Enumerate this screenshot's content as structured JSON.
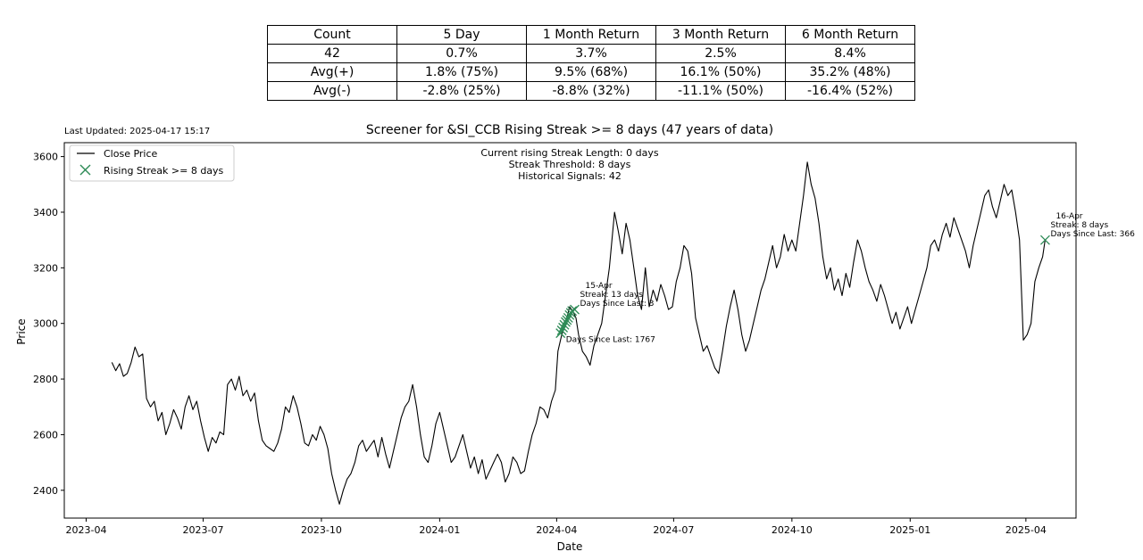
{
  "stats_table": {
    "header": [
      "Count",
      "5 Day",
      "1 Month Return",
      "3 Month Return",
      "6 Month Return"
    ],
    "rows": [
      [
        "42",
        "0.7%",
        "3.7%",
        "2.5%",
        "8.4%"
      ],
      [
        "Avg(+)",
        "1.8% (75%)",
        "9.5% (68%)",
        "16.1% (50%)",
        "35.2% (48%)"
      ],
      [
        "Avg(-)",
        "-2.8% (25%)",
        "-8.8% (32%)",
        "-11.1% (50%)",
        "-16.4% (52%)"
      ]
    ]
  },
  "last_updated": "Last Updated: 2025-04-17 15:17",
  "colors": {
    "line": "#000000",
    "marker": "#2e8b57",
    "axis": "#000000"
  },
  "chart_data": {
    "type": "line",
    "title": "Screener for &SI_CCB Rising Streak >= 8 days (47 years of data)",
    "xlabel": "Date",
    "ylabel": "Price",
    "xlim": [
      "2023-03-15",
      "2025-05-10"
    ],
    "ylim": [
      2300,
      3650
    ],
    "x_ticks": [
      "2023-04",
      "2023-07",
      "2023-10",
      "2024-01",
      "2024-04",
      "2024-07",
      "2024-10",
      "2025-01",
      "2025-04"
    ],
    "y_ticks": [
      2400,
      2600,
      2800,
      3000,
      3200,
      3400,
      3600
    ],
    "grid": false,
    "legend": {
      "position": "top-left",
      "entries": [
        "Close Price",
        "Rising Streak >= 8 days"
      ]
    },
    "info_lines": [
      "Current rising Streak Length: 0 days",
      "Streak Threshold: 8 days",
      "Historical Signals: 42"
    ],
    "series": [
      {
        "name": "Close Price",
        "points": [
          [
            "2023-04-21",
            2860
          ],
          [
            "2023-04-24",
            2830
          ],
          [
            "2023-04-27",
            2855
          ],
          [
            "2023-04-30",
            2810
          ],
          [
            "2023-05-03",
            2820
          ],
          [
            "2023-05-06",
            2860
          ],
          [
            "2023-05-09",
            2915
          ],
          [
            "2023-05-12",
            2880
          ],
          [
            "2023-05-15",
            2890
          ],
          [
            "2023-05-18",
            2730
          ],
          [
            "2023-05-21",
            2700
          ],
          [
            "2023-05-24",
            2720
          ],
          [
            "2023-05-27",
            2650
          ],
          [
            "2023-05-30",
            2680
          ],
          [
            "2023-06-02",
            2600
          ],
          [
            "2023-06-05",
            2640
          ],
          [
            "2023-06-08",
            2690
          ],
          [
            "2023-06-11",
            2660
          ],
          [
            "2023-06-14",
            2620
          ],
          [
            "2023-06-17",
            2700
          ],
          [
            "2023-06-20",
            2740
          ],
          [
            "2023-06-23",
            2690
          ],
          [
            "2023-06-26",
            2720
          ],
          [
            "2023-06-29",
            2650
          ],
          [
            "2023-07-02",
            2590
          ],
          [
            "2023-07-05",
            2540
          ],
          [
            "2023-07-08",
            2590
          ],
          [
            "2023-07-11",
            2570
          ],
          [
            "2023-07-14",
            2610
          ],
          [
            "2023-07-17",
            2600
          ],
          [
            "2023-07-20",
            2780
          ],
          [
            "2023-07-23",
            2800
          ],
          [
            "2023-07-26",
            2760
          ],
          [
            "2023-07-29",
            2810
          ],
          [
            "2023-08-01",
            2740
          ],
          [
            "2023-08-04",
            2760
          ],
          [
            "2023-08-07",
            2720
          ],
          [
            "2023-08-10",
            2750
          ],
          [
            "2023-08-13",
            2650
          ],
          [
            "2023-08-16",
            2580
          ],
          [
            "2023-08-19",
            2560
          ],
          [
            "2023-08-22",
            2550
          ],
          [
            "2023-08-25",
            2540
          ],
          [
            "2023-08-28",
            2570
          ],
          [
            "2023-08-31",
            2620
          ],
          [
            "2023-09-03",
            2700
          ],
          [
            "2023-09-06",
            2680
          ],
          [
            "2023-09-09",
            2740
          ],
          [
            "2023-09-12",
            2700
          ],
          [
            "2023-09-15",
            2640
          ],
          [
            "2023-09-18",
            2570
          ],
          [
            "2023-09-21",
            2560
          ],
          [
            "2023-09-24",
            2600
          ],
          [
            "2023-09-27",
            2580
          ],
          [
            "2023-09-30",
            2630
          ],
          [
            "2023-10-03",
            2600
          ],
          [
            "2023-10-06",
            2550
          ],
          [
            "2023-10-09",
            2460
          ],
          [
            "2023-10-12",
            2400
          ],
          [
            "2023-10-15",
            2350
          ],
          [
            "2023-10-18",
            2400
          ],
          [
            "2023-10-21",
            2440
          ],
          [
            "2023-10-24",
            2460
          ],
          [
            "2023-10-27",
            2500
          ],
          [
            "2023-10-30",
            2560
          ],
          [
            "2023-11-02",
            2580
          ],
          [
            "2023-11-05",
            2540
          ],
          [
            "2023-11-08",
            2560
          ],
          [
            "2023-11-11",
            2580
          ],
          [
            "2023-11-14",
            2520
          ],
          [
            "2023-11-17",
            2590
          ],
          [
            "2023-11-20",
            2530
          ],
          [
            "2023-11-23",
            2480
          ],
          [
            "2023-11-26",
            2540
          ],
          [
            "2023-11-29",
            2600
          ],
          [
            "2023-12-02",
            2660
          ],
          [
            "2023-12-05",
            2700
          ],
          [
            "2023-12-08",
            2720
          ],
          [
            "2023-12-11",
            2780
          ],
          [
            "2023-12-14",
            2700
          ],
          [
            "2023-12-17",
            2600
          ],
          [
            "2023-12-20",
            2520
          ],
          [
            "2023-12-23",
            2500
          ],
          [
            "2023-12-26",
            2560
          ],
          [
            "2023-12-29",
            2640
          ],
          [
            "2024-01-01",
            2680
          ],
          [
            "2024-01-04",
            2620
          ],
          [
            "2024-01-07",
            2560
          ],
          [
            "2024-01-10",
            2500
          ],
          [
            "2024-01-13",
            2520
          ],
          [
            "2024-01-16",
            2560
          ],
          [
            "2024-01-19",
            2600
          ],
          [
            "2024-01-22",
            2540
          ],
          [
            "2024-01-25",
            2480
          ],
          [
            "2024-01-28",
            2520
          ],
          [
            "2024-01-31",
            2460
          ],
          [
            "2024-02-03",
            2510
          ],
          [
            "2024-02-06",
            2440
          ],
          [
            "2024-02-09",
            2470
          ],
          [
            "2024-02-12",
            2500
          ],
          [
            "2024-02-15",
            2530
          ],
          [
            "2024-02-18",
            2500
          ],
          [
            "2024-02-21",
            2430
          ],
          [
            "2024-02-24",
            2460
          ],
          [
            "2024-02-27",
            2520
          ],
          [
            "2024-03-01",
            2500
          ],
          [
            "2024-03-04",
            2460
          ],
          [
            "2024-03-07",
            2470
          ],
          [
            "2024-03-10",
            2540
          ],
          [
            "2024-03-13",
            2600
          ],
          [
            "2024-03-16",
            2640
          ],
          [
            "2024-03-19",
            2700
          ],
          [
            "2024-03-22",
            2690
          ],
          [
            "2024-03-25",
            2660
          ],
          [
            "2024-03-28",
            2720
          ],
          [
            "2024-03-31",
            2760
          ],
          [
            "2024-04-02",
            2900
          ],
          [
            "2024-04-05",
            2960
          ],
          [
            "2024-04-08",
            3000
          ],
          [
            "2024-04-11",
            3060
          ],
          [
            "2024-04-14",
            3040
          ],
          [
            "2024-04-16",
            3020
          ],
          [
            "2024-04-18",
            2960
          ],
          [
            "2024-04-21",
            2900
          ],
          [
            "2024-04-24",
            2880
          ],
          [
            "2024-04-27",
            2850
          ],
          [
            "2024-04-30",
            2920
          ],
          [
            "2024-05-03",
            2960
          ],
          [
            "2024-05-06",
            3000
          ],
          [
            "2024-05-09",
            3100
          ],
          [
            "2024-05-12",
            3200
          ],
          [
            "2024-05-14",
            3300
          ],
          [
            "2024-05-16",
            3400
          ],
          [
            "2024-05-19",
            3330
          ],
          [
            "2024-05-22",
            3250
          ],
          [
            "2024-05-25",
            3360
          ],
          [
            "2024-05-28",
            3300
          ],
          [
            "2024-05-31",
            3200
          ],
          [
            "2024-06-03",
            3100
          ],
          [
            "2024-06-06",
            3050
          ],
          [
            "2024-06-09",
            3200
          ],
          [
            "2024-06-12",
            3060
          ],
          [
            "2024-06-15",
            3120
          ],
          [
            "2024-06-18",
            3080
          ],
          [
            "2024-06-21",
            3140
          ],
          [
            "2024-06-24",
            3100
          ],
          [
            "2024-06-27",
            3050
          ],
          [
            "2024-06-30",
            3060
          ],
          [
            "2024-07-03",
            3150
          ],
          [
            "2024-07-06",
            3200
          ],
          [
            "2024-07-09",
            3280
          ],
          [
            "2024-07-12",
            3260
          ],
          [
            "2024-07-15",
            3180
          ],
          [
            "2024-07-18",
            3020
          ],
          [
            "2024-07-21",
            2960
          ],
          [
            "2024-07-24",
            2900
          ],
          [
            "2024-07-27",
            2920
          ],
          [
            "2024-07-30",
            2880
          ],
          [
            "2024-08-02",
            2840
          ],
          [
            "2024-08-05",
            2820
          ],
          [
            "2024-08-08",
            2900
          ],
          [
            "2024-08-11",
            2990
          ],
          [
            "2024-08-14",
            3060
          ],
          [
            "2024-08-17",
            3120
          ],
          [
            "2024-08-20",
            3050
          ],
          [
            "2024-08-23",
            2960
          ],
          [
            "2024-08-26",
            2900
          ],
          [
            "2024-08-29",
            2940
          ],
          [
            "2024-09-01",
            3000
          ],
          [
            "2024-09-04",
            3060
          ],
          [
            "2024-09-07",
            3120
          ],
          [
            "2024-09-10",
            3160
          ],
          [
            "2024-09-13",
            3220
          ],
          [
            "2024-09-16",
            3280
          ],
          [
            "2024-09-19",
            3200
          ],
          [
            "2024-09-22",
            3240
          ],
          [
            "2024-09-25",
            3320
          ],
          [
            "2024-09-28",
            3260
          ],
          [
            "2024-10-01",
            3300
          ],
          [
            "2024-10-04",
            3260
          ],
          [
            "2024-10-07",
            3360
          ],
          [
            "2024-10-10",
            3460
          ],
          [
            "2024-10-13",
            3580
          ],
          [
            "2024-10-16",
            3500
          ],
          [
            "2024-10-19",
            3450
          ],
          [
            "2024-10-22",
            3360
          ],
          [
            "2024-10-25",
            3240
          ],
          [
            "2024-10-28",
            3160
          ],
          [
            "2024-10-31",
            3200
          ],
          [
            "2024-11-03",
            3120
          ],
          [
            "2024-11-06",
            3160
          ],
          [
            "2024-11-09",
            3100
          ],
          [
            "2024-11-12",
            3180
          ],
          [
            "2024-11-15",
            3130
          ],
          [
            "2024-11-18",
            3220
          ],
          [
            "2024-11-21",
            3300
          ],
          [
            "2024-11-24",
            3260
          ],
          [
            "2024-11-27",
            3200
          ],
          [
            "2024-11-30",
            3150
          ],
          [
            "2024-12-03",
            3120
          ],
          [
            "2024-12-06",
            3080
          ],
          [
            "2024-12-09",
            3140
          ],
          [
            "2024-12-12",
            3100
          ],
          [
            "2024-12-15",
            3050
          ],
          [
            "2024-12-18",
            3000
          ],
          [
            "2024-12-21",
            3040
          ],
          [
            "2024-12-24",
            2980
          ],
          [
            "2024-12-27",
            3020
          ],
          [
            "2024-12-30",
            3060
          ],
          [
            "2025-01-02",
            3000
          ],
          [
            "2025-01-05",
            3050
          ],
          [
            "2025-01-08",
            3100
          ],
          [
            "2025-01-11",
            3150
          ],
          [
            "2025-01-14",
            3200
          ],
          [
            "2025-01-17",
            3280
          ],
          [
            "2025-01-20",
            3300
          ],
          [
            "2025-01-23",
            3260
          ],
          [
            "2025-01-26",
            3320
          ],
          [
            "2025-01-29",
            3360
          ],
          [
            "2025-02-01",
            3310
          ],
          [
            "2025-02-04",
            3380
          ],
          [
            "2025-02-07",
            3340
          ],
          [
            "2025-02-10",
            3300
          ],
          [
            "2025-02-13",
            3260
          ],
          [
            "2025-02-16",
            3200
          ],
          [
            "2025-02-19",
            3280
          ],
          [
            "2025-02-22",
            3340
          ],
          [
            "2025-02-25",
            3400
          ],
          [
            "2025-02-28",
            3460
          ],
          [
            "2025-03-03",
            3480
          ],
          [
            "2025-03-06",
            3420
          ],
          [
            "2025-03-09",
            3380
          ],
          [
            "2025-03-12",
            3440
          ],
          [
            "2025-03-15",
            3500
          ],
          [
            "2025-03-18",
            3460
          ],
          [
            "2025-03-21",
            3480
          ],
          [
            "2025-03-24",
            3400
          ],
          [
            "2025-03-27",
            3300
          ],
          [
            "2025-03-30",
            2940
          ],
          [
            "2025-04-02",
            2960
          ],
          [
            "2025-04-05",
            3000
          ],
          [
            "2025-04-08",
            3150
          ],
          [
            "2025-04-11",
            3200
          ],
          [
            "2025-04-14",
            3240
          ],
          [
            "2025-04-16",
            3300
          ]
        ]
      },
      {
        "name": "Rising Streak >= 8 days",
        "points": [
          [
            "2024-04-04",
            2965
          ],
          [
            "2024-04-05",
            2975
          ],
          [
            "2024-04-06",
            2985
          ],
          [
            "2024-04-07",
            2995
          ],
          [
            "2024-04-08",
            3005
          ],
          [
            "2024-04-09",
            3012
          ],
          [
            "2024-04-10",
            3020
          ],
          [
            "2024-04-11",
            3030
          ],
          [
            "2024-04-12",
            3038
          ],
          [
            "2024-04-13",
            3045
          ],
          [
            "2024-04-15",
            3050
          ],
          [
            "2025-04-16",
            3300
          ]
        ]
      }
    ],
    "annotations": [
      {
        "x": "2024-04-15",
        "y": 3050,
        "lines": [
          "15-Apr",
          "Streak: 13 days",
          "Days Since Last: 3"
        ]
      },
      {
        "x": "2024-04-04",
        "y": 2965,
        "lines": [
          "Days Since Last: 1767"
        ]
      },
      {
        "x": "2025-04-16",
        "y": 3300,
        "lines": [
          "16-Apr",
          "Streak: 8 days",
          "Days Since Last: 366"
        ]
      }
    ]
  }
}
